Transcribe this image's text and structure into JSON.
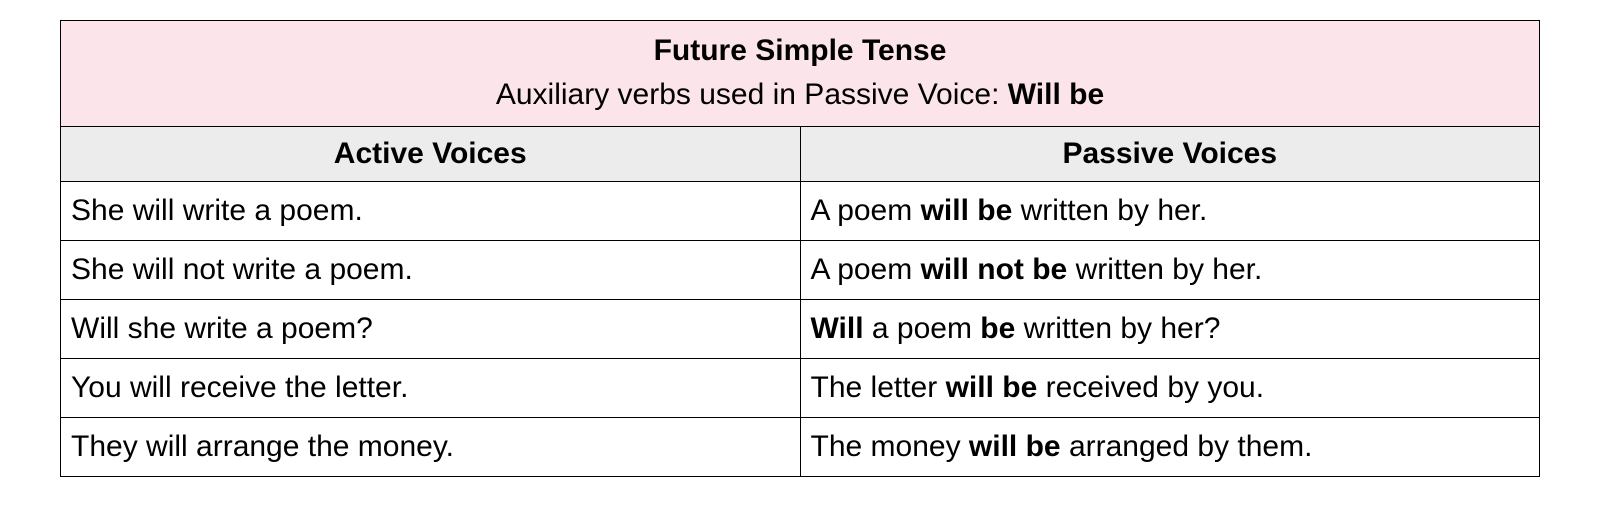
{
  "table": {
    "type": "table",
    "border_color": "#000000",
    "font_family": "Arial",
    "title": {
      "line1": "Future Simple Tense",
      "line2_prefix": "Auxiliary verbs used in Passive Voice: ",
      "line2_bold": "Will be",
      "background_color": "#fbe4ea",
      "title_fontsize": 30,
      "text_color": "#000000"
    },
    "columns": {
      "left": "Active Voices",
      "right": "Passive Voices",
      "background_color": "#ececec",
      "fontsize": 30,
      "font_weight": "bold"
    },
    "rows": [
      {
        "active": "She will write a poem.",
        "passive_parts": [
          "A poem ",
          "will be",
          " written by her."
        ],
        "passive_bold_idx": [
          1
        ]
      },
      {
        "active": "She will not write a poem.",
        "passive_parts": [
          "A poem ",
          "will not be",
          " written by her."
        ],
        "passive_bold_idx": [
          1
        ]
      },
      {
        "active": "Will she write a poem?",
        "passive_parts": [
          "Will",
          " a poem ",
          "be",
          " written by her?"
        ],
        "passive_bold_idx": [
          0,
          2
        ]
      },
      {
        "active": "You will receive the letter.",
        "passive_parts": [
          "The letter ",
          "will be",
          " received by you."
        ],
        "passive_bold_idx": [
          1
        ]
      },
      {
        "active": "They will arrange the money.",
        "passive_parts": [
          "The money ",
          "will be",
          " arranged by them."
        ],
        "passive_bold_idx": [
          1
        ]
      }
    ],
    "row_background_color": "#ffffff",
    "row_fontsize": 30
  }
}
